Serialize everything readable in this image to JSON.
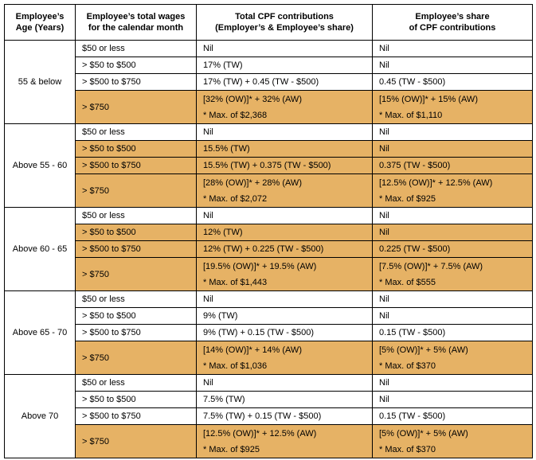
{
  "header": {
    "age": [
      "Employee’s",
      "Age (Years)"
    ],
    "wages": [
      "Employee’s total wages",
      "for the calendar month"
    ],
    "total": [
      "Total CPF contributions",
      "(Employer’s & Employee’s share)"
    ],
    "share": [
      "Employee’s share",
      "of CPF contributions"
    ]
  },
  "highlight_color": "#E6B265",
  "groups": [
    {
      "age": "55 & below",
      "rows": [
        {
          "wage": "$50 or less",
          "total": [
            "Nil"
          ],
          "share": [
            "Nil"
          ],
          "hl": false
        },
        {
          "wage": "> $50 to $500",
          "total": [
            "17% (TW)"
          ],
          "share": [
            "Nil"
          ],
          "hl": false
        },
        {
          "wage": "> $500 to $750",
          "total": [
            "17% (TW) + 0.45 (TW - $500)"
          ],
          "share": [
            "0.45 (TW - $500)"
          ],
          "hl": false
        },
        {
          "wage": "> $750",
          "total": [
            "[32% (OW)]* + 32% (AW)",
            "* Max. of $2,368"
          ],
          "share": [
            "[15% (OW)]* + 15% (AW)",
            "* Max. of $1,110"
          ],
          "hl": true
        }
      ]
    },
    {
      "age": "Above 55 - 60",
      "rows": [
        {
          "wage": "$50 or less",
          "total": [
            "Nil"
          ],
          "share": [
            "Nil"
          ],
          "hl": false
        },
        {
          "wage": "> $50 to $500",
          "total": [
            "15.5% (TW)"
          ],
          "share": [
            "Nil"
          ],
          "hl": true
        },
        {
          "wage": "> $500 to $750",
          "total": [
            "15.5% (TW) + 0.375 (TW - $500)"
          ],
          "share": [
            "0.375 (TW - $500)"
          ],
          "hl": true
        },
        {
          "wage": "> $750",
          "total": [
            "[28% (OW)]* + 28% (AW)",
            "* Max. of $2,072"
          ],
          "share": [
            "[12.5% (OW)]* + 12.5% (AW)",
            "* Max. of $925"
          ],
          "hl": true
        }
      ]
    },
    {
      "age": "Above 60 - 65",
      "rows": [
        {
          "wage": "$50 or less",
          "total": [
            "Nil"
          ],
          "share": [
            "Nil"
          ],
          "hl": false
        },
        {
          "wage": "> $50 to $500",
          "total": [
            "12% (TW)"
          ],
          "share": [
            "Nil"
          ],
          "hl": true
        },
        {
          "wage": "> $500 to $750",
          "total": [
            "12% (TW) + 0.225 (TW - $500)"
          ],
          "share": [
            "0.225 (TW - $500)"
          ],
          "hl": true
        },
        {
          "wage": "> $750",
          "total": [
            "[19.5% (OW)]* + 19.5% (AW)",
            " * Max. of $1,443"
          ],
          "share": [
            "[7.5% (OW)]* + 7.5% (AW)",
            "* Max. of $555"
          ],
          "hl": true
        }
      ]
    },
    {
      "age": "Above 65 - 70",
      "rows": [
        {
          "wage": "$50 or less",
          "total": [
            "Nil"
          ],
          "share": [
            "Nil"
          ],
          "hl": false
        },
        {
          "wage": "> $50 to $500",
          "total": [
            "9% (TW)"
          ],
          "share": [
            "Nil"
          ],
          "hl": false
        },
        {
          "wage": "> $500 to $750",
          "total": [
            "9% (TW) + 0.15 (TW - $500)"
          ],
          "share": [
            "0.15 (TW - $500)"
          ],
          "hl": false
        },
        {
          "wage": "> $750",
          "total": [
            "[14% (OW)]* + 14% (AW)",
            "* Max. of $1,036"
          ],
          "share": [
            "[5% (OW)]* + 5% (AW)",
            "* Max. of $370"
          ],
          "hl": true
        }
      ]
    },
    {
      "age": "Above 70",
      "rows": [
        {
          "wage": "$50 or less",
          "total": [
            "Nil"
          ],
          "share": [
            "Nil"
          ],
          "hl": false
        },
        {
          "wage": "> $50 to $500",
          "total": [
            "7.5% (TW)"
          ],
          "share": [
            "Nil"
          ],
          "hl": false
        },
        {
          "wage": "> $500 to $750",
          "total": [
            "7.5% (TW) + 0.15 (TW - $500)"
          ],
          "share": [
            "0.15 (TW - $500)"
          ],
          "hl": false
        },
        {
          "wage": "> $750",
          "total": [
            "[12.5% (OW)]* + 12.5% (AW)",
            "* Max. of $925"
          ],
          "share": [
            "[5% (OW)]* + 5% (AW)",
            "* Max. of $370"
          ],
          "hl": true
        }
      ]
    }
  ]
}
